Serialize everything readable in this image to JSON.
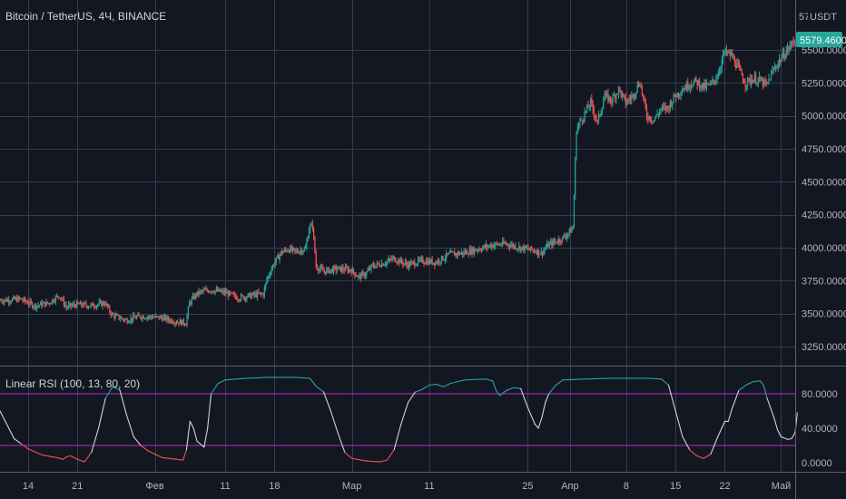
{
  "header": {
    "symbol": "Bitcoin / TetherUS, 4Ч, BINANCE",
    "currency": "USDT",
    "price_top_partial": "57"
  },
  "indicator": {
    "name": "Linear RSI (100, 13, 80, 20)"
  },
  "colors": {
    "background": "#131722",
    "grid": "#363c4e",
    "up": "#26a69a",
    "down": "#ef5350",
    "price_tag": "#26a69a",
    "rsi_line": "#d1d4dc",
    "rsi_low": "#ef5350",
    "rsi_high": "#26a69a",
    "level_line": "#9c27b0",
    "axis_text": "#b2b5be"
  },
  "chart_data": [
    {
      "type": "candlestick",
      "title": "Bitcoin / TetherUS, 4Ч, BINANCE",
      "yaxis": {
        "ticks": [
          "5500.0000",
          "5250.0000",
          "5000.0000",
          "4750.0000",
          "4500.0000",
          "4250.0000",
          "4000.0000",
          "3750.0000",
          "3500.0000",
          "3250.0000"
        ],
        "tick_values": [
          5500,
          5250,
          5000,
          4750,
          4500,
          4250,
          4000,
          3750,
          3500,
          3250
        ],
        "range": [
          3150,
          5780
        ]
      },
      "last_price": 5579.46,
      "last_price_label": "5579.4600",
      "xaxis": {
        "ticks": [
          "14",
          "21",
          "Фев",
          "11",
          "18",
          "Мар",
          "11",
          "25",
          "Апр",
          "8",
          "15",
          "22",
          "Май"
        ],
        "tick_days": [
          14,
          21,
          32,
          42,
          49,
          60,
          71,
          85,
          91,
          99,
          106,
          113,
          121
        ],
        "range_days": [
          10,
          123
        ]
      },
      "anchors": [
        [
          10,
          3600
        ],
        [
          13,
          3610
        ],
        [
          15,
          3560
        ],
        [
          17,
          3580
        ],
        [
          18.5,
          3640
        ],
        [
          19.5,
          3550
        ],
        [
          21,
          3570
        ],
        [
          23,
          3560
        ],
        [
          25,
          3580
        ],
        [
          26,
          3490
        ],
        [
          28,
          3450
        ],
        [
          30,
          3480
        ],
        [
          33,
          3470
        ],
        [
          35,
          3440
        ],
        [
          36.5,
          3430
        ],
        [
          37,
          3580
        ],
        [
          38,
          3650
        ],
        [
          39,
          3670
        ],
        [
          40,
          3680
        ],
        [
          42,
          3660
        ],
        [
          44,
          3620
        ],
        [
          46,
          3640
        ],
        [
          47.5,
          3650
        ],
        [
          48,
          3760
        ],
        [
          49,
          3880
        ],
        [
          50,
          3960
        ],
        [
          51,
          3990
        ],
        [
          52,
          3970
        ],
        [
          53.5,
          3990
        ],
        [
          54,
          4150
        ],
        [
          54.5,
          4170
        ],
        [
          55,
          3860
        ],
        [
          56,
          3820
        ],
        [
          58,
          3840
        ],
        [
          60,
          3830
        ],
        [
          61,
          3780
        ],
        [
          62,
          3800
        ],
        [
          63,
          3860
        ],
        [
          65,
          3890
        ],
        [
          66,
          3920
        ],
        [
          68,
          3870
        ],
        [
          70,
          3900
        ],
        [
          72,
          3890
        ],
        [
          74,
          3950
        ],
        [
          76,
          3960
        ],
        [
          78,
          3990
        ],
        [
          80,
          4020
        ],
        [
          82,
          4030
        ],
        [
          84,
          4000
        ],
        [
          86,
          3980
        ],
        [
          87,
          3960
        ],
        [
          88,
          4020
        ],
        [
          90,
          4070
        ],
        [
          91,
          4120
        ],
        [
          91.5,
          4150
        ],
        [
          92,
          4900
        ],
        [
          93,
          5000
        ],
        [
          94,
          5100
        ],
        [
          95,
          4950
        ],
        [
          96,
          5150
        ],
        [
          97,
          5120
        ],
        [
          98,
          5200
        ],
        [
          99,
          5100
        ],
        [
          100,
          5150
        ],
        [
          101,
          5260
        ],
        [
          102,
          5000
        ],
        [
          103,
          4970
        ],
        [
          104,
          5050
        ],
        [
          105,
          5060
        ],
        [
          106,
          5150
        ],
        [
          107,
          5200
        ],
        [
          108,
          5240
        ],
        [
          109,
          5260
        ],
        [
          110,
          5220
        ],
        [
          111,
          5230
        ],
        [
          112,
          5300
        ],
        [
          113,
          5480
        ],
        [
          114,
          5460
        ],
        [
          115,
          5360
        ],
        [
          116,
          5250
        ],
        [
          117,
          5280
        ],
        [
          118,
          5270
        ],
        [
          119,
          5230
        ],
        [
          120,
          5350
        ],
        [
          121,
          5430
        ],
        [
          122,
          5500
        ],
        [
          123,
          5580
        ]
      ]
    },
    {
      "type": "line",
      "title": "Linear RSI (100, 13, 80, 20)",
      "yaxis": {
        "ticks": [
          "80.0000",
          "40.0000",
          "0.0000"
        ],
        "tick_values": [
          80,
          40,
          0
        ],
        "range": [
          -5,
          105
        ]
      },
      "levels": [
        80,
        20
      ],
      "series": [
        {
          "points": [
            [
              10,
              60
            ],
            [
              12,
              28
            ],
            [
              13,
              22
            ],
            [
              14,
              16
            ],
            [
              16,
              9
            ],
            [
              18,
              6
            ],
            [
              19,
              4
            ],
            [
              19.5,
              7
            ],
            [
              20,
              8
            ],
            [
              21,
              4
            ],
            [
              22,
              1
            ],
            [
              23,
              12
            ],
            [
              24,
              40
            ],
            [
              25,
              75
            ],
            [
              26,
              88
            ],
            [
              27,
              85
            ],
            [
              28,
              55
            ],
            [
              29,
              30
            ],
            [
              30,
              20
            ],
            [
              31,
              14
            ],
            [
              32,
              10
            ],
            [
              33,
              6
            ],
            [
              35,
              4
            ],
            [
              36,
              3
            ],
            [
              36.5,
              15
            ],
            [
              37,
              48
            ],
            [
              37.5,
              40
            ],
            [
              38,
              25
            ],
            [
              39,
              18
            ],
            [
              39.5,
              40
            ],
            [
              40,
              80
            ],
            [
              41,
              92
            ],
            [
              42,
              96
            ],
            [
              45,
              98
            ],
            [
              48,
              99
            ],
            [
              52,
              99
            ],
            [
              54,
              98
            ],
            [
              55,
              88
            ],
            [
              56,
              82
            ],
            [
              57,
              60
            ],
            [
              58,
              35
            ],
            [
              59,
              12
            ],
            [
              60,
              5
            ],
            [
              62,
              2
            ],
            [
              64,
              1
            ],
            [
              65,
              3
            ],
            [
              66,
              15
            ],
            [
              67,
              45
            ],
            [
              68,
              70
            ],
            [
              69,
              82
            ],
            [
              70,
              85
            ],
            [
              71,
              90
            ],
            [
              72,
              91
            ],
            [
              73,
              88
            ],
            [
              74,
              92
            ],
            [
              76,
              96
            ],
            [
              79,
              97
            ],
            [
              80,
              95
            ],
            [
              80.5,
              84
            ],
            [
              81,
              78
            ],
            [
              82,
              84
            ],
            [
              83,
              87
            ],
            [
              84,
              86
            ],
            [
              85,
              64
            ],
            [
              86,
              45
            ],
            [
              86.5,
              40
            ],
            [
              87,
              52
            ],
            [
              87.5,
              70
            ],
            [
              88,
              80
            ],
            [
              89,
              90
            ],
            [
              90,
              96
            ],
            [
              93,
              97
            ],
            [
              97,
              98
            ],
            [
              102,
              98
            ],
            [
              104,
              97
            ],
            [
              105,
              90
            ],
            [
              106,
              60
            ],
            [
              107,
              30
            ],
            [
              108,
              15
            ],
            [
              109,
              8
            ],
            [
              110,
              5
            ],
            [
              111,
              10
            ],
            [
              112,
              30
            ],
            [
              113,
              48
            ],
            [
              113.5,
              48
            ],
            [
              114,
              62
            ],
            [
              115,
              84
            ],
            [
              116,
              90
            ],
            [
              117,
              94
            ],
            [
              118,
              95
            ],
            [
              118.5,
              90
            ],
            [
              119,
              75
            ],
            [
              120,
              52
            ],
            [
              120.5,
              38
            ],
            [
              121,
              30
            ],
            [
              122,
              27
            ],
            [
              122.5,
              28
            ],
            [
              123,
              35
            ],
            [
              123.3,
              58
            ]
          ]
        }
      ]
    }
  ]
}
